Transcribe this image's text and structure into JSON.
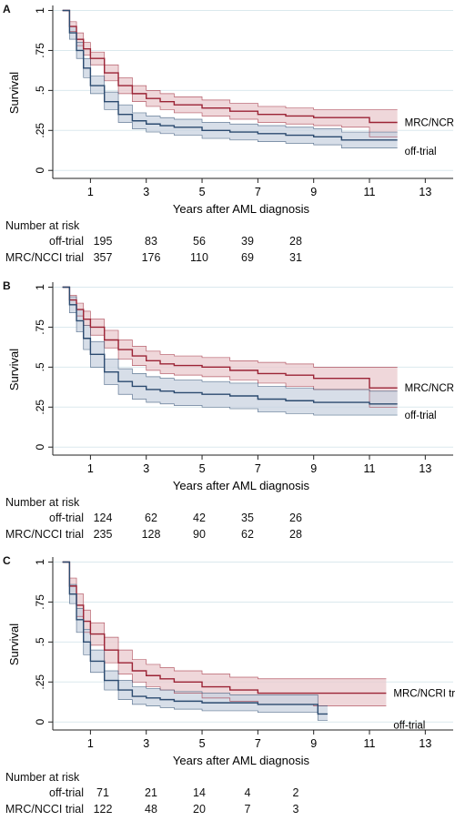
{
  "chart_data": [
    {
      "type": "line",
      "panel_label": "A",
      "ylabel": "Survival",
      "xlabel": "Years after AML diagnosis",
      "x_ticks": [
        1,
        3,
        5,
        7,
        9,
        11,
        13
      ],
      "y_ticks": [
        0,
        0.25,
        0.5,
        0.75,
        1
      ],
      "y_tick_labels": [
        "0",
        ".25",
        ".5",
        ".75",
        "1"
      ],
      "xlim": [
        -0.35,
        14
      ],
      "ylim": [
        -0.05,
        1.02
      ],
      "grid": "horizontal",
      "series": [
        {
          "name": "MRC/NCRI trial",
          "color": "#9b2335",
          "band_color": "#e9c9cd",
          "x": [
            0,
            0.25,
            0.5,
            0.75,
            1,
            1.5,
            2,
            2.5,
            3,
            3.5,
            4,
            5,
            6,
            7,
            8,
            9,
            10,
            11,
            12
          ],
          "y": [
            1,
            0.9,
            0.82,
            0.76,
            0.7,
            0.61,
            0.53,
            0.48,
            0.45,
            0.43,
            0.41,
            0.39,
            0.37,
            0.35,
            0.34,
            0.33,
            0.33,
            0.3,
            0.3
          ],
          "lower": [
            1,
            0.87,
            0.78,
            0.72,
            0.66,
            0.56,
            0.48,
            0.43,
            0.4,
            0.38,
            0.36,
            0.34,
            0.32,
            0.3,
            0.29,
            0.28,
            0.27,
            0.21,
            0.21
          ],
          "upper": [
            1,
            0.93,
            0.86,
            0.8,
            0.74,
            0.66,
            0.58,
            0.53,
            0.5,
            0.48,
            0.46,
            0.44,
            0.42,
            0.4,
            0.39,
            0.38,
            0.38,
            0.38,
            0.38
          ]
        },
        {
          "name": "off-trial",
          "color": "#2b4a6f",
          "band_color": "#c9d3e0",
          "x": [
            0,
            0.25,
            0.5,
            0.75,
            1,
            1.5,
            2,
            2.5,
            3,
            3.5,
            4,
            5,
            6,
            7,
            8,
            9,
            10,
            11,
            12
          ],
          "y": [
            1,
            0.86,
            0.75,
            0.64,
            0.53,
            0.43,
            0.35,
            0.31,
            0.29,
            0.28,
            0.27,
            0.25,
            0.24,
            0.23,
            0.22,
            0.21,
            0.19,
            0.19,
            0.19
          ],
          "lower": [
            1,
            0.82,
            0.7,
            0.58,
            0.48,
            0.38,
            0.3,
            0.26,
            0.24,
            0.23,
            0.22,
            0.2,
            0.19,
            0.18,
            0.17,
            0.16,
            0.14,
            0.14,
            0.14
          ],
          "upper": [
            1,
            0.9,
            0.8,
            0.7,
            0.59,
            0.49,
            0.41,
            0.36,
            0.34,
            0.33,
            0.32,
            0.3,
            0.29,
            0.28,
            0.27,
            0.26,
            0.24,
            0.24,
            0.24
          ]
        }
      ],
      "risk_table": {
        "title": "Number at risk",
        "times": [
          1,
          3,
          5,
          7,
          9
        ],
        "rows": [
          {
            "label": "off-trial",
            "values": [
              195,
              83,
              56,
              39,
              28
            ]
          },
          {
            "label": "MRC/NCCI trial",
            "values": [
              357,
              176,
              110,
              69,
              31
            ]
          }
        ]
      }
    },
    {
      "type": "line",
      "panel_label": "B",
      "ylabel": "Survival",
      "xlabel": "Years after AML diagnosis",
      "x_ticks": [
        1,
        3,
        5,
        7,
        9,
        11,
        13
      ],
      "y_ticks": [
        0,
        0.25,
        0.5,
        0.75,
        1
      ],
      "y_tick_labels": [
        "0",
        ".25",
        ".5",
        ".75",
        "1"
      ],
      "xlim": [
        -0.35,
        14
      ],
      "ylim": [
        -0.05,
        1.02
      ],
      "grid": "horizontal",
      "series": [
        {
          "name": "MRC/NCRI trial",
          "color": "#9b2335",
          "band_color": "#e9c9cd",
          "x": [
            0,
            0.25,
            0.5,
            0.75,
            1,
            1.5,
            2,
            2.5,
            3,
            3.5,
            4,
            5,
            6,
            7,
            8,
            9,
            10,
            11,
            12
          ],
          "y": [
            1,
            0.92,
            0.86,
            0.8,
            0.75,
            0.67,
            0.61,
            0.57,
            0.54,
            0.52,
            0.51,
            0.5,
            0.48,
            0.46,
            0.45,
            0.43,
            0.43,
            0.37,
            0.37
          ],
          "lower": [
            1,
            0.89,
            0.82,
            0.76,
            0.7,
            0.62,
            0.55,
            0.51,
            0.48,
            0.46,
            0.45,
            0.44,
            0.42,
            0.4,
            0.38,
            0.36,
            0.36,
            0.25,
            0.25
          ],
          "upper": [
            1,
            0.95,
            0.9,
            0.85,
            0.8,
            0.73,
            0.67,
            0.63,
            0.6,
            0.58,
            0.57,
            0.56,
            0.54,
            0.53,
            0.52,
            0.5,
            0.5,
            0.5,
            0.5
          ]
        },
        {
          "name": "off-trial",
          "color": "#2b4a6f",
          "band_color": "#c9d3e0",
          "x": [
            0,
            0.25,
            0.5,
            0.75,
            1,
            1.5,
            2,
            2.5,
            3,
            3.5,
            4,
            5,
            6,
            7,
            8,
            9,
            10,
            11,
            12
          ],
          "y": [
            1,
            0.89,
            0.79,
            0.68,
            0.58,
            0.47,
            0.41,
            0.38,
            0.36,
            0.35,
            0.34,
            0.33,
            0.32,
            0.3,
            0.29,
            0.28,
            0.28,
            0.27,
            0.27
          ],
          "lower": [
            1,
            0.84,
            0.72,
            0.61,
            0.5,
            0.39,
            0.33,
            0.3,
            0.28,
            0.27,
            0.26,
            0.25,
            0.24,
            0.22,
            0.21,
            0.2,
            0.2,
            0.2,
            0.2
          ],
          "upper": [
            1,
            0.94,
            0.86,
            0.76,
            0.66,
            0.55,
            0.49,
            0.46,
            0.44,
            0.43,
            0.42,
            0.41,
            0.4,
            0.38,
            0.37,
            0.36,
            0.36,
            0.35,
            0.35
          ]
        }
      ],
      "risk_table": {
        "title": "Number at risk",
        "times": [
          1,
          3,
          5,
          7,
          9
        ],
        "rows": [
          {
            "label": "off-trial",
            "values": [
              124,
              62,
              42,
              35,
              26
            ]
          },
          {
            "label": "MRC/NCCI trial",
            "values": [
              235,
              128,
              90,
              62,
              28
            ]
          }
        ]
      }
    },
    {
      "type": "line",
      "panel_label": "C",
      "ylabel": "Survival",
      "xlabel": "Years after AML diagnosis",
      "x_ticks": [
        1,
        3,
        5,
        7,
        9,
        11,
        13
      ],
      "y_ticks": [
        0,
        0.25,
        0.5,
        0.75,
        1
      ],
      "y_tick_labels": [
        "0",
        ".25",
        ".5",
        ".75",
        "1"
      ],
      "xlim": [
        -0.35,
        14
      ],
      "ylim": [
        -0.05,
        1.02
      ],
      "grid": "horizontal",
      "series": [
        {
          "name": "MRC/NCRI trial",
          "color": "#9b2335",
          "band_color": "#e9c9cd",
          "x": [
            0,
            0.25,
            0.5,
            0.75,
            1,
            1.5,
            2,
            2.5,
            3,
            3.5,
            4,
            5,
            6,
            7,
            8,
            9,
            10,
            11,
            11.6
          ],
          "y": [
            1,
            0.85,
            0.73,
            0.63,
            0.55,
            0.45,
            0.37,
            0.32,
            0.29,
            0.27,
            0.25,
            0.22,
            0.2,
            0.18,
            0.18,
            0.18,
            0.18,
            0.18,
            0.18
          ],
          "lower": [
            1,
            0.8,
            0.66,
            0.56,
            0.48,
            0.37,
            0.3,
            0.25,
            0.22,
            0.2,
            0.18,
            0.15,
            0.13,
            0.11,
            0.11,
            0.1,
            0.1,
            0.1,
            0.1
          ],
          "upper": [
            1,
            0.9,
            0.8,
            0.7,
            0.62,
            0.53,
            0.45,
            0.39,
            0.36,
            0.34,
            0.32,
            0.3,
            0.28,
            0.27,
            0.27,
            0.27,
            0.27,
            0.27,
            0.27
          ]
        },
        {
          "name": "off-trial",
          "color": "#2b4a6f",
          "band_color": "#c9d3e0",
          "x": [
            0,
            0.25,
            0.5,
            0.75,
            1,
            1.5,
            2,
            2.5,
            3,
            3.5,
            4,
            5,
            6,
            7,
            8,
            9,
            9.15,
            9.5
          ],
          "y": [
            1,
            0.8,
            0.64,
            0.5,
            0.38,
            0.26,
            0.2,
            0.16,
            0.15,
            0.14,
            0.13,
            0.12,
            0.12,
            0.11,
            0.11,
            0.11,
            0.05,
            0.05
          ],
          "lower": [
            1,
            0.74,
            0.56,
            0.42,
            0.31,
            0.2,
            0.14,
            0.11,
            0.1,
            0.09,
            0.08,
            0.07,
            0.07,
            0.06,
            0.06,
            0.06,
            0.01,
            0.01
          ],
          "upper": [
            1,
            0.86,
            0.71,
            0.58,
            0.45,
            0.32,
            0.26,
            0.22,
            0.21,
            0.2,
            0.19,
            0.18,
            0.17,
            0.17,
            0.17,
            0.17,
            0.1,
            0.1
          ]
        }
      ],
      "risk_table": {
        "title": "Number at risk",
        "times": [
          1,
          3,
          5,
          7,
          9
        ],
        "rows": [
          {
            "label": "off-trial",
            "values": [
              71,
              21,
              14,
              4,
              2
            ]
          },
          {
            "label": "MRC/NCCI trial",
            "values": [
              122,
              48,
              20,
              7,
              3
            ]
          }
        ]
      }
    }
  ]
}
